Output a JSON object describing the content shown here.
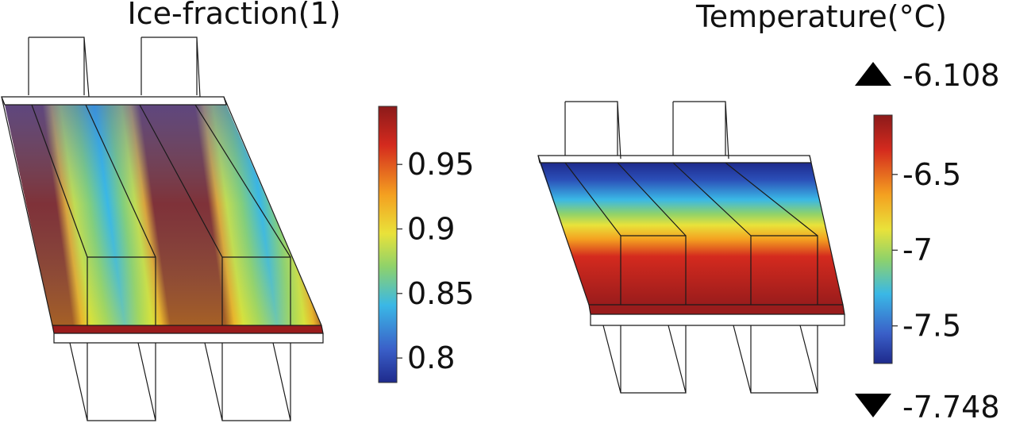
{
  "left_plot": {
    "title": "Ice-fraction(1)",
    "colorbar": {
      "ticks": [
        "0.95",
        "0.9",
        "0.85",
        "0.8"
      ],
      "tick_values": [
        0.95,
        0.9,
        0.85,
        0.8
      ],
      "range": [
        0.781,
        0.995
      ],
      "colors": [
        "#8b1a1a",
        "#d42a1e",
        "#f4a020",
        "#e9e23a",
        "#8fd26a",
        "#3ab8e6",
        "#3a5fc8",
        "#1e2a8c"
      ]
    }
  },
  "right_plot": {
    "title": "Temperature(°C)",
    "max_label": "-6.108",
    "min_label": "-7.748",
    "colorbar": {
      "ticks": [
        "-6.5",
        "-7",
        "-7.5"
      ],
      "tick_values": [
        -6.5,
        -7,
        -7.5
      ],
      "range": [
        -7.748,
        -6.108
      ],
      "colors": [
        "#8b1a1a",
        "#d42a1e",
        "#f4a020",
        "#e9e23a",
        "#8fd26a",
        "#3ab8e6",
        "#3a5fc8",
        "#1e2a8c"
      ]
    }
  },
  "icons": {
    "max_marker": "triangle-up-icon",
    "min_marker": "triangle-down-icon"
  }
}
